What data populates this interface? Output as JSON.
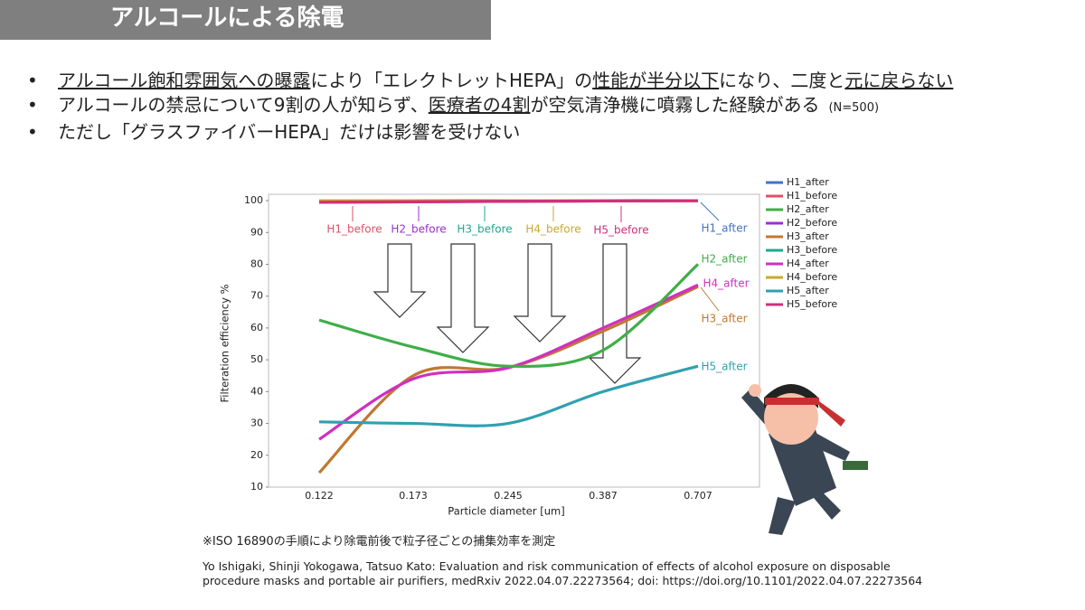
{
  "slide_title": "アルコールによる除電",
  "bullets": [
    [
      {
        "text": "アルコール飽和雰囲気への曝露",
        "underline": true
      },
      {
        "text": "により「エレクトレットHEPA」の",
        "underline": false
      },
      {
        "text": "性能が半分以下",
        "underline": true
      },
      {
        "text": "になり、二度と",
        "underline": false
      },
      {
        "text": "元に戻らない",
        "underline": true
      }
    ],
    [
      {
        "text": "アルコールの禁忌について9割の人が知らず、",
        "underline": false
      },
      {
        "text": "医療者の4割",
        "underline": true
      },
      {
        "text": "が空気清浄機に噴霧した経験がある",
        "underline": false
      },
      {
        "text": "(N=500)",
        "underline": false,
        "small": true
      }
    ],
    [
      {
        "text": "ただし「グラスファイバーHEPA」だけは影響を受けない",
        "underline": false
      }
    ]
  ],
  "chart_data": {
    "type": "line",
    "x_label": "Particle diameter [um]",
    "y_label": "Filteration efficiency %",
    "categories": [
      "0.122",
      "0.173",
      "0.245",
      "0.387",
      "0.707"
    ],
    "ylim": [
      10,
      102
    ],
    "yticks": [
      10,
      20,
      30,
      40,
      50,
      60,
      70,
      80,
      90,
      100
    ],
    "legend": "right",
    "series": [
      {
        "name": "H1_after",
        "color": "#4472c4",
        "values": [
          99.9,
          100,
          100,
          100,
          100
        ]
      },
      {
        "name": "H1_before",
        "color": "#e05068",
        "values": [
          99.5,
          99.7,
          99.8,
          99.9,
          100
        ]
      },
      {
        "name": "H2_after",
        "color": "#3fae49",
        "values": [
          62.5,
          54,
          48,
          53,
          80
        ]
      },
      {
        "name": "H2_before",
        "color": "#9b30d0",
        "values": [
          99.6,
          99.7,
          99.8,
          99.9,
          100
        ]
      },
      {
        "name": "H3_after",
        "color": "#c07830",
        "values": [
          14.5,
          45,
          47.5,
          59,
          73
        ]
      },
      {
        "name": "H3_before",
        "color": "#20a890",
        "values": [
          99.7,
          99.8,
          99.9,
          100,
          100
        ]
      },
      {
        "name": "H4_after",
        "color": "#d030c0",
        "values": [
          25,
          44,
          47.5,
          60,
          73.5
        ]
      },
      {
        "name": "H4_before",
        "color": "#c8a830",
        "values": [
          100,
          100,
          100,
          100,
          100
        ]
      },
      {
        "name": "H5_after",
        "color": "#30a0b0",
        "values": [
          30.5,
          30,
          30,
          40,
          48
        ]
      },
      {
        "name": "H5_before",
        "color": "#d0307a",
        "values": [
          99.5,
          99.6,
          99.8,
          99.9,
          100
        ]
      }
    ],
    "annotations": [
      {
        "text": "H1_before",
        "color": "#e05068"
      },
      {
        "text": "H2_before",
        "color": "#9b30d0"
      },
      {
        "text": "H3_before",
        "color": "#20a890"
      },
      {
        "text": "H4_before",
        "color": "#c8a830"
      },
      {
        "text": "H5_before",
        "color": "#d0307a"
      },
      {
        "text": "H1_after",
        "color": "#4472c4"
      },
      {
        "text": "H2_after",
        "color": "#3fae49"
      },
      {
        "text": "H4_after",
        "color": "#d030c0"
      },
      {
        "text": "H3_after",
        "color": "#c07830"
      },
      {
        "text": "H5_after",
        "color": "#30a0b0"
      }
    ]
  },
  "note": "※ISO 16890の手順により除電前後で粒子径ごとの捕集効率を測定",
  "citation": [
    "Yo Ishigaki, Shinji Yokogawa, Tatsuo Kato: Evaluation and risk communication of effects of alcohol exposure on disposable",
    "procedure masks and portable air purifiers, medRxiv 2022.04.07.22273564; doi: https://doi.org/10.1101/2022.04.07.22273564"
  ]
}
